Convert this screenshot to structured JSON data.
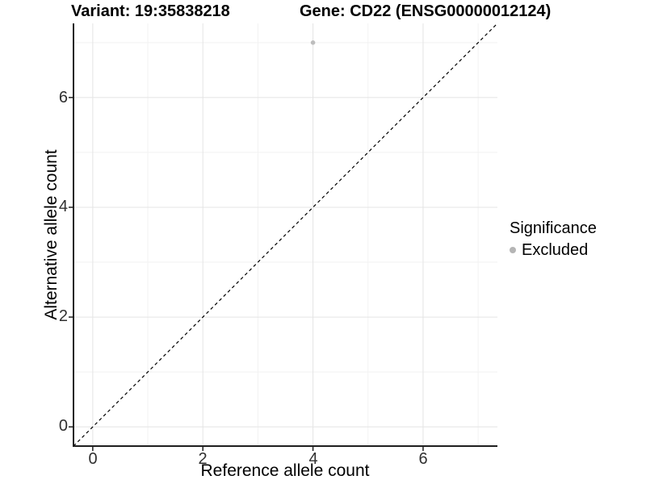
{
  "titles": {
    "left": "Variant: 19:35838218",
    "right": "Gene: CD22 (ENSG00000012124)"
  },
  "colors": {
    "background": "#ffffff",
    "grid_major": "#e4e4e4",
    "grid_minor": "#f2f2f2",
    "axis_line": "#1f1f1f",
    "identity_line": "#000000",
    "point": "#bdbdbd",
    "legend_swatch": "#b5b5b5",
    "tick_text": "#303030"
  },
  "chart_data": {
    "type": "scatter",
    "title": "Variant: 19:35838218 — Gene: CD22 (ENSG00000012124)",
    "xlabel": "Reference allele count",
    "ylabel": "Alternative allele count",
    "xlim": [
      -0.35,
      7.35
    ],
    "ylim": [
      -0.35,
      7.35
    ],
    "x_ticks": [
      0,
      2,
      4,
      6
    ],
    "y_ticks": [
      0,
      2,
      4,
      6
    ],
    "x_minor_ticks": [
      1,
      3,
      5,
      7
    ],
    "y_minor_ticks": [
      1,
      3,
      5,
      7
    ],
    "grid": true,
    "identity_line": {
      "slope": 1,
      "intercept": 0,
      "style": "dashed",
      "color": "#000000"
    },
    "series": [
      {
        "name": "Excluded",
        "color": "#bdbdbd",
        "points": [
          {
            "x": 4,
            "y": 7
          }
        ]
      }
    ],
    "legend": {
      "title": "Significance",
      "position": "right",
      "items": [
        {
          "label": "Excluded",
          "color": "#b5b5b5"
        }
      ]
    }
  }
}
